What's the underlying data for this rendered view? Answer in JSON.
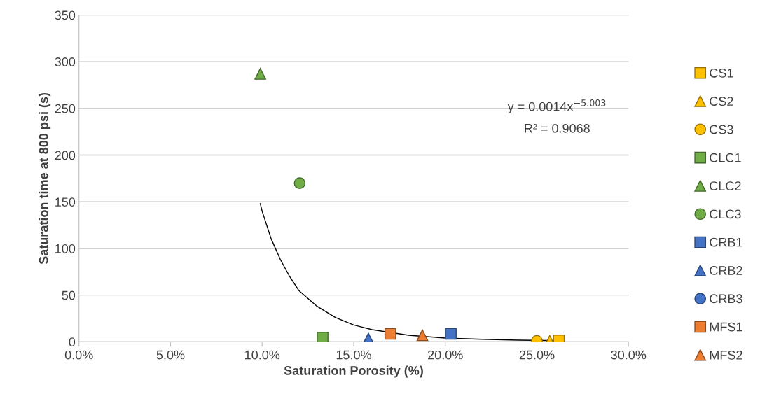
{
  "chart_data": {
    "type": "scatter",
    "xlabel": "Saturation Porosity (%)",
    "ylabel": "Saturation time at 800 psi (s)",
    "xlim": [
      0,
      0.3
    ],
    "xticks": [
      {
        "value": 0,
        "label": "0.0%"
      },
      {
        "value": 0.05,
        "label": "5.0%"
      },
      {
        "value": 0.1,
        "label": "10.0%"
      },
      {
        "value": 0.15,
        "label": "15.0%"
      },
      {
        "value": 0.2,
        "label": "20.0%"
      },
      {
        "value": 0.25,
        "label": "25.0%"
      },
      {
        "value": 0.3,
        "label": "30.0%"
      }
    ],
    "ylim": [
      0,
      350
    ],
    "yticks": [
      0,
      50,
      100,
      150,
      200,
      250,
      300,
      350
    ],
    "grid": "y",
    "legend": "right",
    "series": [
      {
        "name": "CS1",
        "color": "#ffc000",
        "marker": "square",
        "x": [
          0.262
        ],
        "values": [
          1.5
        ]
      },
      {
        "name": "CS2",
        "color": "#ffc000",
        "marker": "triangle",
        "x": [
          0.257
        ],
        "values": [
          1
        ]
      },
      {
        "name": "CS3",
        "color": "#ffc000",
        "marker": "circle",
        "x": [
          0.25
        ],
        "values": [
          1
        ]
      },
      {
        "name": "CLC1",
        "color": "#70ad47",
        "marker": "square",
        "x": [
          0.133
        ],
        "values": [
          4.5
        ]
      },
      {
        "name": "CLC2",
        "color": "#70ad47",
        "marker": "triangle",
        "x": [
          0.099
        ],
        "values": [
          287
        ]
      },
      {
        "name": "CLC3",
        "color": "#70ad47",
        "marker": "circle",
        "x": [
          0.1205
        ],
        "values": [
          170
        ]
      },
      {
        "name": "CRB1",
        "color": "#4472c4",
        "marker": "square",
        "x": [
          0.203
        ],
        "values": [
          8.5
        ]
      },
      {
        "name": "CRB2",
        "color": "#4472c4",
        "marker": "triangle",
        "x": [
          0.158
        ],
        "values": [
          3.5
        ]
      },
      {
        "name": "CRB3",
        "color": "#4472c4",
        "marker": "circle",
        "x": [
          null
        ],
        "values": [
          null
        ]
      },
      {
        "name": "MFS1",
        "color": "#ed7d31",
        "marker": "square",
        "x": [
          0.17
        ],
        "values": [
          8.5
        ]
      },
      {
        "name": "MFS2",
        "color": "#ed7d31",
        "marker": "triangle",
        "x": [
          0.1875
        ],
        "values": [
          7
        ]
      },
      {
        "type": "line",
        "color": "#000000",
        "marker": "none",
        "x": [
          0.099,
          0.1,
          0.105,
          0.11,
          0.115,
          0.12,
          0.13,
          0.14,
          0.15,
          0.16,
          0.18,
          0.2,
          0.22,
          0.24,
          0.262
        ],
        "values": [
          148,
          140,
          110,
          88,
          70,
          55,
          38,
          26,
          18,
          13,
          7,
          4,
          2.7,
          1.8,
          1.2
        ]
      }
    ],
    "annotations": [
      "y = 0.0014x$^{−5.003}$",
      "R² = 0.9068"
    ]
  }
}
